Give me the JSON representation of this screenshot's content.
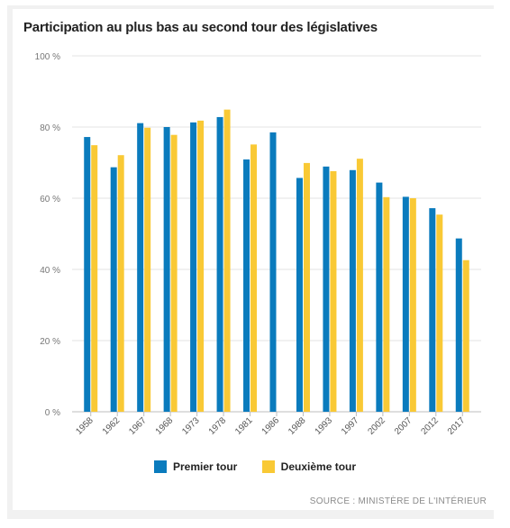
{
  "chart_data": {
    "type": "bar",
    "title": "Participation au plus bas au second tour des législatives",
    "categories": [
      "1958",
      "1962",
      "1967",
      "1968",
      "1973",
      "1978",
      "1981",
      "1986",
      "1988",
      "1993",
      "1997",
      "2002",
      "2007",
      "2012",
      "2017"
    ],
    "series": [
      {
        "name": "Premier tour",
        "color": "#0a7bbd",
        "values": [
          77.2,
          68.7,
          81.1,
          80.0,
          81.3,
          82.8,
          70.9,
          78.5,
          65.7,
          68.9,
          67.9,
          64.4,
          60.4,
          57.2,
          48.7
        ]
      },
      {
        "name": "Deuxième tour",
        "color": "#f9c935",
        "values": [
          74.9,
          72.1,
          79.8,
          77.8,
          81.8,
          84.9,
          75.1,
          null,
          69.9,
          67.6,
          71.1,
          60.3,
          60.0,
          55.4,
          42.6
        ]
      }
    ],
    "yticks": [
      "0 %",
      "20 %",
      "40 %",
      "60 %",
      "80 %",
      "100 %"
    ],
    "ylim": [
      0,
      100
    ],
    "grid": true,
    "legend_position": "bottom",
    "source": "SOURCE : MINISTÈRE DE L'INTÉRIEUR"
  }
}
